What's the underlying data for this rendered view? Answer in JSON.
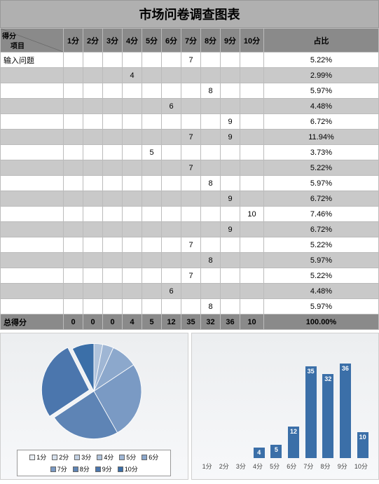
{
  "title": "市场问卷调查图表",
  "header": {
    "diag_top": "得分",
    "diag_bottom": "项目",
    "cols": [
      "1分",
      "2分",
      "3分",
      "4分",
      "5分",
      "6分",
      "7分",
      "8分",
      "9分",
      "10分"
    ],
    "pct": "占比"
  },
  "first_row_label": "输入问题",
  "rows": [
    {
      "cells": [
        "",
        "",
        "",
        "",
        "",
        "",
        "7",
        "",
        "",
        ""
      ],
      "pct": "5.22%"
    },
    {
      "cells": [
        "",
        "",
        "",
        "4",
        "",
        "",
        "",
        "",
        "",
        ""
      ],
      "pct": "2.99%"
    },
    {
      "cells": [
        "",
        "",
        "",
        "",
        "",
        "",
        "",
        "8",
        "",
        ""
      ],
      "pct": "5.97%"
    },
    {
      "cells": [
        "",
        "",
        "",
        "",
        "",
        "6",
        "",
        "",
        "",
        ""
      ],
      "pct": "4.48%"
    },
    {
      "cells": [
        "",
        "",
        "",
        "",
        "",
        "",
        "",
        "",
        "9",
        ""
      ],
      "pct": "6.72%"
    },
    {
      "cells": [
        "",
        "",
        "",
        "",
        "",
        "",
        "7",
        "",
        "9",
        ""
      ],
      "pct": "11.94%"
    },
    {
      "cells": [
        "",
        "",
        "",
        "",
        "5",
        "",
        "",
        "",
        "",
        ""
      ],
      "pct": "3.73%"
    },
    {
      "cells": [
        "",
        "",
        "",
        "",
        "",
        "",
        "7",
        "",
        "",
        ""
      ],
      "pct": "5.22%"
    },
    {
      "cells": [
        "",
        "",
        "",
        "",
        "",
        "",
        "",
        "8",
        "",
        ""
      ],
      "pct": "5.97%"
    },
    {
      "cells": [
        "",
        "",
        "",
        "",
        "",
        "",
        "",
        "",
        "9",
        ""
      ],
      "pct": "6.72%"
    },
    {
      "cells": [
        "",
        "",
        "",
        "",
        "",
        "",
        "",
        "",
        "",
        "10"
      ],
      "pct": "7.46%"
    },
    {
      "cells": [
        "",
        "",
        "",
        "",
        "",
        "",
        "",
        "",
        "9",
        ""
      ],
      "pct": "6.72%"
    },
    {
      "cells": [
        "",
        "",
        "",
        "",
        "",
        "",
        "7",
        "",
        "",
        ""
      ],
      "pct": "5.22%"
    },
    {
      "cells": [
        "",
        "",
        "",
        "",
        "",
        "",
        "",
        "8",
        "",
        ""
      ],
      "pct": "5.97%"
    },
    {
      "cells": [
        "",
        "",
        "",
        "",
        "",
        "",
        "7",
        "",
        "",
        ""
      ],
      "pct": "5.22%"
    },
    {
      "cells": [
        "",
        "",
        "",
        "",
        "",
        "6",
        "",
        "",
        "",
        ""
      ],
      "pct": "4.48%"
    },
    {
      "cells": [
        "",
        "",
        "",
        "",
        "",
        "",
        "",
        "8",
        "",
        ""
      ],
      "pct": "5.97%"
    }
  ],
  "total": {
    "label": "总得分",
    "cells": [
      "0",
      "0",
      "0",
      "4",
      "5",
      "12",
      "35",
      "32",
      "36",
      "10"
    ],
    "pct": "100.00%"
  },
  "pie": {
    "labels": [
      "1分",
      "2分",
      "3分",
      "4分",
      "5分",
      "6分",
      "7分",
      "8分",
      "9分",
      "10分"
    ],
    "values": [
      0,
      0,
      0,
      4,
      5,
      12,
      35,
      32,
      36,
      10
    ],
    "colors": [
      "#e8edf3",
      "#d6e0ec",
      "#c4d2e4",
      "#b1c4dc",
      "#9fb6d4",
      "#8ca8cc",
      "#7a9ac4",
      "#5e84b5",
      "#4b76ad",
      "#3b6fa8"
    ]
  },
  "bar": {
    "labels": [
      "1分",
      "2分",
      "3分",
      "4分",
      "5分",
      "6分",
      "7分",
      "8分",
      "9分",
      "10分"
    ],
    "values": [
      0,
      0,
      0,
      4,
      5,
      12,
      35,
      32,
      36,
      10
    ],
    "color": "#3b6fa8",
    "max": 40
  },
  "legend_labels": [
    "1分",
    "2分",
    "3分",
    "4分",
    "5分",
    "6分",
    "7分",
    "8分",
    "9分",
    "10分"
  ]
}
